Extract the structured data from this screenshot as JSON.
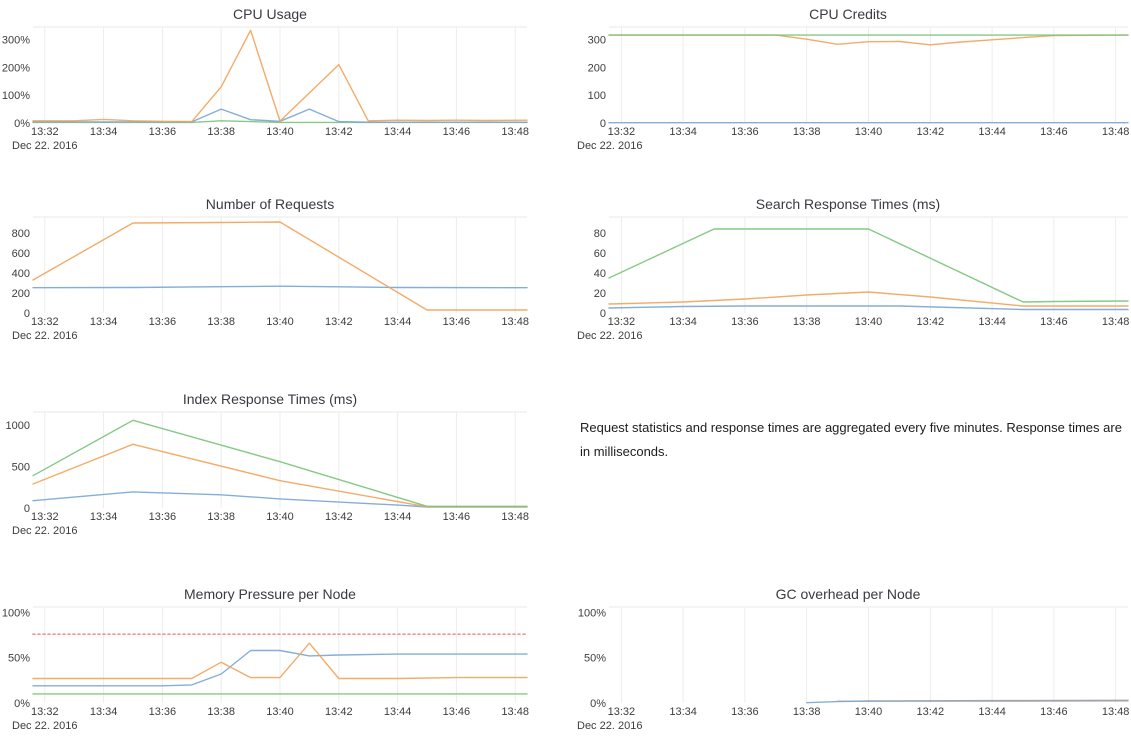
{
  "note": {
    "text": "Request statistics and response times are aggregated every five minutes. Response times are in milliseconds."
  },
  "palette": {
    "blue": "#7aa7d6",
    "orange": "#f2a45c",
    "green": "#7cc47c",
    "red": "#ec8b8b",
    "grid": "#ececec",
    "plot_border": "#e9e9e9",
    "label": "#3d3d3d",
    "title": "#3a3a42"
  },
  "chart_data": [
    {
      "type": "line",
      "title": "CPU Usage",
      "x": {
        "domain": [
          31.6,
          48.4
        ],
        "tick_values": [
          32,
          34,
          36,
          38,
          40,
          42,
          44,
          46,
          48
        ],
        "tick_labels": [
          "13:32",
          "13:34",
          "13:36",
          "13:38",
          "13:40",
          "13:42",
          "13:44",
          "13:46",
          "13:48"
        ],
        "date_label": "Dec 22. 2016"
      },
      "y": {
        "domain": [
          0,
          345
        ],
        "tick_values": [
          0,
          100,
          200,
          300
        ],
        "tick_labels": [
          "0%",
          "100%",
          "200%",
          "300%"
        ]
      },
      "series": [
        {
          "color": "green",
          "points": [
            [
              31.6,
              2
            ],
            [
              36,
              2
            ],
            [
              37,
              2
            ],
            [
              38,
              8
            ],
            [
              39,
              5
            ],
            [
              40,
              2
            ],
            [
              48.4,
              2
            ]
          ]
        },
        {
          "color": "blue",
          "points": [
            [
              31.6,
              4
            ],
            [
              36,
              4
            ],
            [
              37,
              4
            ],
            [
              38,
              50
            ],
            [
              39,
              12
            ],
            [
              40,
              6
            ],
            [
              41,
              50
            ],
            [
              42,
              5
            ],
            [
              43,
              3
            ],
            [
              48.4,
              3
            ]
          ]
        },
        {
          "color": "orange",
          "points": [
            [
              31.6,
              8
            ],
            [
              33,
              8
            ],
            [
              34,
              13
            ],
            [
              35,
              8
            ],
            [
              36,
              6
            ],
            [
              37,
              5
            ],
            [
              38,
              130
            ],
            [
              39,
              333
            ],
            [
              40,
              7
            ],
            [
              42,
              210
            ],
            [
              43,
              8
            ],
            [
              44,
              10
            ],
            [
              45,
              9
            ],
            [
              46,
              10
            ],
            [
              47,
              9
            ],
            [
              48.4,
              10
            ]
          ]
        }
      ]
    },
    {
      "type": "line",
      "title": "CPU Credits",
      "x": {
        "domain": [
          31.6,
          48.4
        ],
        "tick_values": [
          32,
          34,
          36,
          38,
          40,
          42,
          44,
          46,
          48
        ],
        "tick_labels": [
          "13:32",
          "13:34",
          "13:36",
          "13:38",
          "13:40",
          "13:42",
          "13:44",
          "13:46",
          "13:48"
        ],
        "date_label": "Dec 22. 2016"
      },
      "y": {
        "domain": [
          0,
          345
        ],
        "tick_values": [
          0,
          100,
          200,
          300
        ],
        "tick_labels": [
          "0",
          "100",
          "200",
          "300"
        ]
      },
      "series": [
        {
          "color": "blue",
          "points": [
            [
              31.6,
              1
            ],
            [
              48.4,
              1
            ]
          ]
        },
        {
          "color": "orange",
          "points": [
            [
              31.6,
              316
            ],
            [
              37,
              316
            ],
            [
              38,
              301
            ],
            [
              39,
              283
            ],
            [
              40,
              292
            ],
            [
              41,
              293
            ],
            [
              42,
              281
            ],
            [
              43,
              291
            ],
            [
              44,
              299
            ],
            [
              45,
              307
            ],
            [
              46,
              314
            ],
            [
              48.4,
              316
            ]
          ]
        },
        {
          "color": "green",
          "points": [
            [
              31.6,
              316
            ],
            [
              48.4,
              316
            ]
          ]
        }
      ]
    },
    {
      "type": "line",
      "title": "Number of Requests",
      "x": {
        "domain": [
          31.6,
          48.4
        ],
        "tick_values": [
          32,
          34,
          36,
          38,
          40,
          42,
          44,
          46,
          48
        ],
        "tick_labels": [
          "13:32",
          "13:34",
          "13:36",
          "13:38",
          "13:40",
          "13:42",
          "13:44",
          "13:46",
          "13:48"
        ],
        "date_label": "Dec 22. 2016"
      },
      "y": {
        "domain": [
          0,
          960
        ],
        "tick_values": [
          0,
          200,
          400,
          600,
          800
        ],
        "tick_labels": [
          "0",
          "200",
          "400",
          "600",
          "800"
        ]
      },
      "series": [
        {
          "color": "blue",
          "points": [
            [
              31.6,
              253
            ],
            [
              35,
              255
            ],
            [
              38,
              263
            ],
            [
              40,
              268
            ],
            [
              42,
              262
            ],
            [
              44,
              255
            ],
            [
              48.4,
              253
            ]
          ]
        },
        {
          "color": "orange",
          "points": [
            [
              31.6,
              330
            ],
            [
              35,
              900
            ],
            [
              38,
              905
            ],
            [
              40,
              910
            ],
            [
              45,
              30
            ],
            [
              48.4,
              30
            ]
          ]
        }
      ]
    },
    {
      "type": "line",
      "title": "Search Response Times (ms)",
      "x": {
        "domain": [
          31.6,
          48.4
        ],
        "tick_values": [
          32,
          34,
          36,
          38,
          40,
          42,
          44,
          46,
          48
        ],
        "tick_labels": [
          "13:32",
          "13:34",
          "13:36",
          "13:38",
          "13:40",
          "13:42",
          "13:44",
          "13:46",
          "13:48"
        ],
        "date_label": "Dec 22. 2016"
      },
      "y": {
        "domain": [
          0,
          96
        ],
        "tick_values": [
          0,
          20,
          40,
          60,
          80
        ],
        "tick_labels": [
          "0",
          "20",
          "40",
          "60",
          "80"
        ]
      },
      "series": [
        {
          "color": "blue",
          "points": [
            [
              31.6,
              5
            ],
            [
              34,
              6.5
            ],
            [
              36,
              7
            ],
            [
              40,
              7
            ],
            [
              41,
              7
            ],
            [
              45,
              3.5
            ],
            [
              48.4,
              3.5
            ]
          ]
        },
        {
          "color": "orange",
          "points": [
            [
              31.6,
              9
            ],
            [
              34,
              11
            ],
            [
              36,
              14
            ],
            [
              38,
              18
            ],
            [
              40,
              21
            ],
            [
              42,
              16
            ],
            [
              45,
              7
            ],
            [
              48.4,
              7
            ]
          ]
        },
        {
          "color": "green",
          "points": [
            [
              31.6,
              35
            ],
            [
              35,
              84
            ],
            [
              40,
              84
            ],
            [
              45,
              11
            ],
            [
              46,
              11.5
            ],
            [
              48.4,
              12
            ]
          ]
        }
      ]
    },
    {
      "type": "line",
      "title": "Index Response Times (ms)",
      "x": {
        "domain": [
          31.6,
          48.4
        ],
        "tick_values": [
          32,
          34,
          36,
          38,
          40,
          42,
          44,
          46,
          48
        ],
        "tick_labels": [
          "13:32",
          "13:34",
          "13:36",
          "13:38",
          "13:40",
          "13:42",
          "13:44",
          "13:46",
          "13:48"
        ],
        "date_label": "Dec 22. 2016"
      },
      "y": {
        "domain": [
          0,
          1160
        ],
        "tick_values": [
          0,
          500,
          1000
        ],
        "tick_labels": [
          "0",
          "500",
          "1000"
        ]
      },
      "series": [
        {
          "color": "blue",
          "points": [
            [
              31.6,
              88
            ],
            [
              35,
              195
            ],
            [
              38,
              160
            ],
            [
              40,
              110
            ],
            [
              44,
              35
            ],
            [
              45,
              12
            ],
            [
              48.4,
              12
            ]
          ]
        },
        {
          "color": "orange",
          "points": [
            [
              31.6,
              290
            ],
            [
              35,
              770
            ],
            [
              40,
              330
            ],
            [
              45,
              15
            ],
            [
              48.4,
              15
            ]
          ]
        },
        {
          "color": "green",
          "points": [
            [
              31.6,
              390
            ],
            [
              35,
              1060
            ],
            [
              40,
              560
            ],
            [
              45,
              20
            ],
            [
              48.4,
              20
            ]
          ]
        }
      ]
    },
    {
      "type": "line",
      "title": "Memory Pressure per Node",
      "x": {
        "domain": [
          31.6,
          48.4
        ],
        "tick_values": [
          32,
          34,
          36,
          38,
          40,
          42,
          44,
          46,
          48
        ],
        "tick_labels": [
          "13:32",
          "13:34",
          "13:36",
          "13:38",
          "13:40",
          "13:42",
          "13:44",
          "13:46",
          "13:48"
        ],
        "date_label": "Dec 22. 2016"
      },
      "y": {
        "domain": [
          0,
          106
        ],
        "tick_values": [
          0,
          50,
          100
        ],
        "tick_labels": [
          "0%",
          "50%",
          "100%"
        ]
      },
      "series": [
        {
          "color": "red",
          "dash": true,
          "points": [
            [
              31.6,
              76
            ],
            [
              48.4,
              76
            ]
          ]
        },
        {
          "color": "green",
          "points": [
            [
              31.6,
              10
            ],
            [
              48.4,
              10
            ]
          ]
        },
        {
          "color": "blue",
          "points": [
            [
              31.6,
              19
            ],
            [
              36,
              19
            ],
            [
              37,
              20
            ],
            [
              38,
              32
            ],
            [
              39,
              58
            ],
            [
              40,
              58
            ],
            [
              41,
              52
            ],
            [
              42,
              53
            ],
            [
              44,
              54
            ],
            [
              48.4,
              54
            ]
          ]
        },
        {
          "color": "orange",
          "points": [
            [
              31.6,
              27
            ],
            [
              37,
              27
            ],
            [
              38,
              45
            ],
            [
              39,
              28
            ],
            [
              40,
              28
            ],
            [
              41,
              66
            ],
            [
              42,
              27
            ],
            [
              44,
              27
            ],
            [
              46,
              28
            ],
            [
              48.4,
              28
            ]
          ]
        }
      ]
    },
    {
      "type": "line",
      "title": "GC overhead per Node",
      "x": {
        "domain": [
          31.6,
          48.4
        ],
        "tick_values": [
          32,
          34,
          36,
          38,
          40,
          42,
          44,
          46,
          48
        ],
        "tick_labels": [
          "13:32",
          "13:34",
          "13:36",
          "13:38",
          "13:40",
          "13:42",
          "13:44",
          "13:46",
          "13:48"
        ],
        "date_label": "Dec 22. 2016"
      },
      "y": {
        "domain": [
          0,
          106
        ],
        "tick_values": [
          0,
          50,
          100
        ],
        "tick_labels": [
          "0%",
          "50%",
          "100%"
        ]
      },
      "series": [
        {
          "color": "orange",
          "points": [
            [
              39,
              2
            ],
            [
              42,
              2
            ],
            [
              45,
              2
            ],
            [
              48.4,
              2.3
            ]
          ]
        },
        {
          "color": "blue",
          "points": [
            [
              38,
              0.3
            ],
            [
              39,
              1.5
            ],
            [
              40,
              2.2
            ],
            [
              44,
              2.6
            ],
            [
              48.4,
              3
            ]
          ]
        }
      ]
    }
  ]
}
